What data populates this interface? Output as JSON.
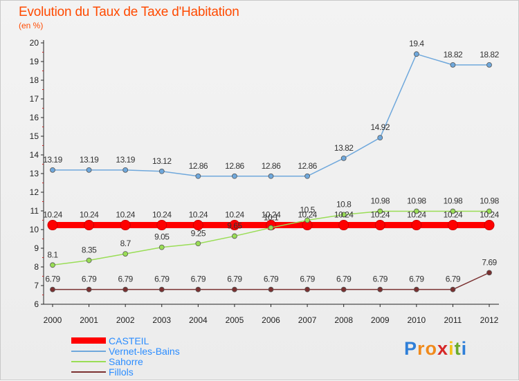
{
  "header": {
    "title": "Evolution du Taux de Taxe d'Habitation",
    "unit_label": "(en %)"
  },
  "brand": {
    "letters": [
      "P",
      "r",
      "o",
      "x",
      "i",
      "t",
      "i"
    ],
    "colors": [
      "#2f7fd8",
      "#f08a1c",
      "#f08a1c",
      "#d62828",
      "#f3c31a",
      "#6aaa2a",
      "#2f7fd8"
    ]
  },
  "chart_data": {
    "type": "line",
    "title": "Evolution du Taux de Taxe d'Habitation",
    "ylabel": "(en %)",
    "ylim": [
      6,
      20
    ],
    "yticks": [
      6,
      7,
      8,
      9,
      10,
      11,
      12,
      13,
      14,
      15,
      16,
      17,
      18,
      19,
      20
    ],
    "grid": false,
    "legend_position": "bottom-left",
    "x": [
      "2000",
      "2001",
      "2002",
      "2003",
      "2004",
      "2005",
      "2006",
      "2007",
      "2008",
      "2009",
      "2010",
      "2011",
      "2012"
    ],
    "series": [
      {
        "name": "CASTEIL",
        "color": "#ff0000",
        "values": [
          10.24,
          10.24,
          10.24,
          10.24,
          10.24,
          10.24,
          10.24,
          10.24,
          10.24,
          10.24,
          10.24,
          10.24,
          10.24
        ],
        "labels": [
          "10.24",
          "10.24",
          "10.24",
          "10.24",
          "10.24",
          "10.24",
          "10.24",
          "10.24",
          "10.24",
          "10.24",
          "10.24",
          "10.24",
          "10.24"
        ]
      },
      {
        "name": "Vernet-les-Bains",
        "color": "#6fa8dc",
        "values": [
          13.19,
          13.19,
          13.19,
          13.12,
          12.86,
          12.86,
          12.86,
          12.86,
          13.82,
          14.92,
          19.4,
          18.82,
          18.82
        ],
        "labels": [
          "13.19",
          "13.19",
          "13.19",
          "13.12",
          "12.86",
          "12.86",
          "12.86",
          "12.86",
          "13.82",
          "14.92",
          "19.4",
          "18.82",
          "18.82"
        ]
      },
      {
        "name": "Sahorre",
        "color": "#99dd55",
        "values": [
          8.1,
          8.35,
          8.7,
          9.05,
          9.25,
          9.65,
          10.1,
          10.5,
          10.8,
          10.98,
          10.98,
          10.98,
          10.98
        ],
        "labels": [
          "8.1",
          "8.35",
          "8.7",
          "9.05",
          "9.25",
          "9.65",
          "10.1",
          "10.5",
          "10.8",
          "10.98",
          "10.98",
          "10.98",
          "10.98"
        ]
      },
      {
        "name": "Fillols",
        "color": "#7a3030",
        "values": [
          6.79,
          6.79,
          6.79,
          6.79,
          6.79,
          6.79,
          6.79,
          6.79,
          6.79,
          6.79,
          6.79,
          6.79,
          7.69
        ],
        "labels": [
          "6.79",
          "6.79",
          "6.79",
          "6.79",
          "6.79",
          "6.79",
          "6.79",
          "6.79",
          "6.79",
          "6.79",
          "6.79",
          "6.79",
          "7.69"
        ]
      }
    ]
  }
}
